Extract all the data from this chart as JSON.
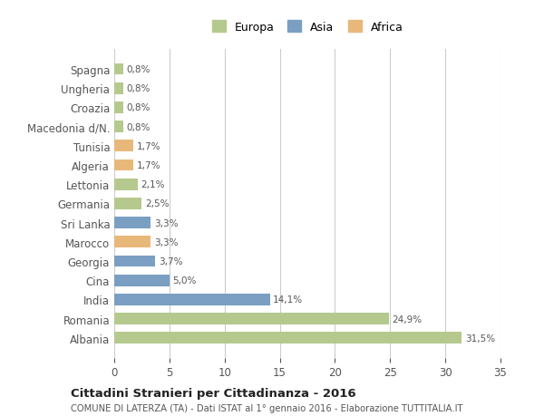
{
  "categories": [
    "Albania",
    "Romania",
    "India",
    "Cina",
    "Georgia",
    "Marocco",
    "Sri Lanka",
    "Germania",
    "Lettonia",
    "Algeria",
    "Tunisia",
    "Macedonia d/N.",
    "Croazia",
    "Ungheria",
    "Spagna"
  ],
  "values": [
    31.5,
    24.9,
    14.1,
    5.0,
    3.7,
    3.3,
    3.3,
    2.5,
    2.1,
    1.7,
    1.7,
    0.8,
    0.8,
    0.8,
    0.8
  ],
  "labels": [
    "31,5%",
    "24,9%",
    "14,1%",
    "5,0%",
    "3,7%",
    "3,3%",
    "3,3%",
    "2,5%",
    "2,1%",
    "1,7%",
    "1,7%",
    "0,8%",
    "0,8%",
    "0,8%",
    "0,8%"
  ],
  "continents": [
    "Europa",
    "Europa",
    "Asia",
    "Asia",
    "Asia",
    "Africa",
    "Asia",
    "Europa",
    "Europa",
    "Africa",
    "Africa",
    "Europa",
    "Europa",
    "Europa",
    "Europa"
  ],
  "colors": {
    "Europa": "#b5c98e",
    "Asia": "#7a9fc2",
    "Africa": "#e8b87a"
  },
  "legend_colors": {
    "Europa": "#b5c98e",
    "Asia": "#7a9fc2",
    "Africa": "#e8b87a"
  },
  "title": "Cittadini Stranieri per Cittadinanza - 2016",
  "subtitle": "COMUNE DI LATERZA (TA) - Dati ISTAT al 1° gennaio 2016 - Elaborazione TUTTITALIA.IT",
  "xlim": [
    0,
    35
  ],
  "xticks": [
    0,
    5,
    10,
    15,
    20,
    25,
    30,
    35
  ],
  "background_color": "#ffffff",
  "grid_color": "#cccccc",
  "bar_height": 0.6,
  "legend_labels": [
    "Europa",
    "Asia",
    "Africa"
  ]
}
